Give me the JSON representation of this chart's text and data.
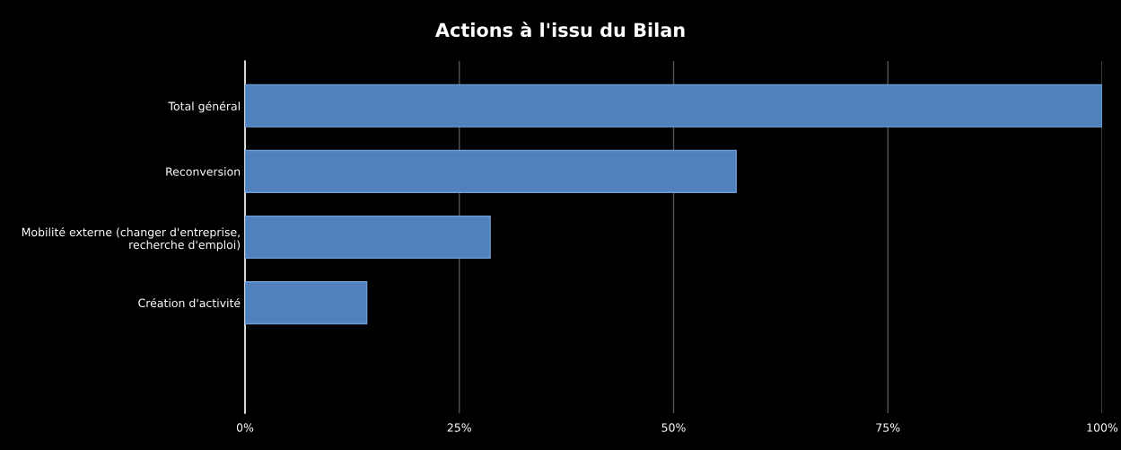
{
  "chart_data": {
    "type": "bar",
    "orientation": "horizontal",
    "title": "Actions à l'issu du Bilan",
    "categories": [
      "Total général",
      "Reconversion",
      "Mobilité externe (changer d'entreprise,\nrecherche d'emploi)",
      "Création d'activité",
      null
    ],
    "values": [
      100,
      57.3,
      28.6,
      14.2,
      null
    ],
    "color": "#4f81bd",
    "xlim": [
      0,
      100
    ],
    "xticks": [
      {
        "value": 0,
        "label": "0%"
      },
      {
        "value": 25,
        "label": "25%"
      },
      {
        "value": 50,
        "label": "50%"
      },
      {
        "value": 75,
        "label": "75%"
      },
      {
        "value": 100,
        "label": "100%"
      }
    ],
    "grid": "x",
    "legend": false
  }
}
